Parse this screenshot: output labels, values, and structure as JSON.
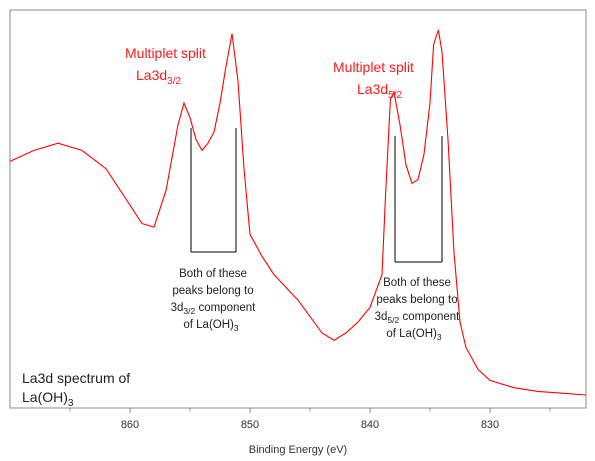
{
  "chart_data": {
    "type": "line",
    "title": "",
    "xlabel": "Binding Energy (eV)",
    "ylabel": "",
    "xlim": [
      870,
      822
    ],
    "x_reversed": true,
    "xticks": [
      860,
      850,
      840,
      830
    ],
    "grid": false,
    "line_color": "#ff0000",
    "series": [
      {
        "values_note": "",
        "x": [
          870,
          868,
          866,
          864,
          862,
          860,
          859,
          858,
          857,
          856,
          855.5,
          855,
          854.5,
          854,
          853.5,
          853,
          852.5,
          852,
          851.5,
          851,
          850.5,
          850,
          849,
          848,
          846,
          844,
          843,
          842,
          841,
          840,
          839,
          838.7,
          838.3,
          838,
          837.5,
          837,
          836.5,
          836,
          835.5,
          835,
          834.7,
          834.3,
          834,
          833.5,
          833,
          832.5,
          832,
          831,
          830,
          828,
          826,
          824,
          822
        ],
        "y": [
          0.64,
          0.67,
          0.69,
          0.67,
          0.62,
          0.52,
          0.47,
          0.46,
          0.56,
          0.74,
          0.8,
          0.76,
          0.7,
          0.67,
          0.69,
          0.72,
          0.8,
          0.9,
          0.99,
          0.86,
          0.62,
          0.44,
          0.38,
          0.33,
          0.26,
          0.17,
          0.15,
          0.17,
          0.2,
          0.24,
          0.33,
          0.55,
          0.81,
          0.83,
          0.74,
          0.63,
          0.58,
          0.59,
          0.66,
          0.8,
          0.96,
          1.0,
          0.94,
          0.7,
          0.39,
          0.2,
          0.13,
          0.07,
          0.04,
          0.02,
          0.01,
          0.005,
          0.0
        ]
      }
    ]
  },
  "labels": {
    "peak_left_line1": "Multiplet split",
    "peak_left_base": "La3d",
    "peak_left_sub": "3/2",
    "peak_right_line1": "Multiplet split",
    "peak_right_base": "La3d",
    "peak_right_sub": "5/2",
    "note_left_line1": "Both of these",
    "note_left_line2": "peaks belong to",
    "note_left_line3_base": "3d",
    "note_left_line3_sub": "3/2",
    "note_left_line3_rest": " component",
    "note_left_line4_base": "of La(OH)",
    "note_left_line4_sub": "3",
    "note_right_line1": "Both of these",
    "note_right_line2": "peaks belong to",
    "note_right_line3_base": "3d",
    "note_right_line3_sub": "5/2",
    "note_right_line3_rest": " component",
    "note_right_line4_base": "of La(OH)",
    "note_right_line4_sub": "3",
    "spectrum_line1": "La3d spectrum of",
    "spectrum_line2_base": "La(OH)",
    "spectrum_line2_sub": "3"
  }
}
